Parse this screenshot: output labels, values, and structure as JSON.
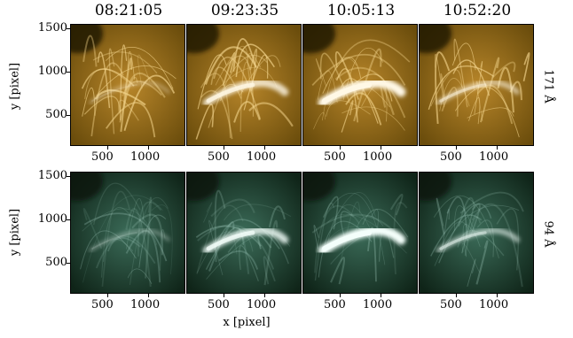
{
  "times": [
    "08:21:05",
    "09:23:35",
    "10:05:13",
    "10:52:20"
  ],
  "rows": [
    {
      "label": "171 Å",
      "channel": "aia171",
      "base": "#6b4d0c",
      "mid": "#b8862a",
      "hi": "#f2d38a",
      "peak": "#fff8e6",
      "dark": "#1a1206"
    },
    {
      "label": "94 Å",
      "channel": "aia94",
      "base": "#0f2418",
      "mid": "#3b6b58",
      "hi": "#a8d2c4",
      "peak": "#f4fffb",
      "dark": "#0a1510"
    }
  ],
  "ylabel": "y [pixel]",
  "xlabel": "x [pixel]",
  "xticks": [
    "500",
    "1000"
  ],
  "yticks": [
    "1500",
    "1000",
    "500"
  ],
  "flare_intensity": [
    0.15,
    0.75,
    1.0,
    0.45
  ]
}
